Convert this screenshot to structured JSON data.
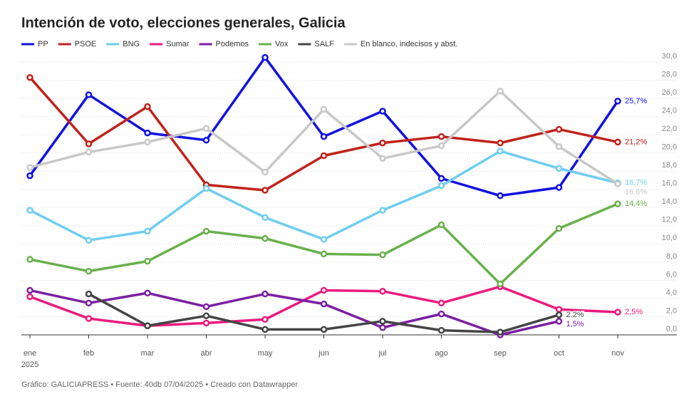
{
  "chart_data": {
    "type": "line",
    "title": "Intención de voto, elecciones generales, Galicia",
    "categories": [
      "ene",
      "feb",
      "mar",
      "abr",
      "may",
      "jun",
      "jul",
      "ago",
      "sep",
      "oct",
      "nov"
    ],
    "year_label": "2025",
    "ylim": [
      0,
      30
    ],
    "yticks": [
      {
        "value": 0,
        "label": "0,0"
      },
      {
        "value": 2,
        "label": "2,0"
      },
      {
        "value": 4,
        "label": "4,0"
      },
      {
        "value": 6,
        "label": "6,0"
      },
      {
        "value": 8,
        "label": "8,0"
      },
      {
        "value": 10,
        "label": "10,0"
      },
      {
        "value": 12,
        "label": "12,0"
      },
      {
        "value": 14,
        "label": "14,0"
      },
      {
        "value": 16,
        "label": "16,0"
      },
      {
        "value": 18,
        "label": "18,0"
      },
      {
        "value": 20,
        "label": "20,0"
      },
      {
        "value": 22,
        "label": "22,0"
      },
      {
        "value": 24,
        "label": "24,0"
      },
      {
        "value": 26,
        "label": "26,0"
      },
      {
        "value": 28,
        "label": "28,0"
      },
      {
        "value": 30,
        "label": "30,0"
      }
    ],
    "grid": true,
    "series": [
      {
        "name": "PP",
        "color": "#1212e0",
        "values": [
          17.5,
          26.4,
          22.2,
          21.4,
          30.5,
          21.8,
          24.6,
          17.2,
          15.3,
          16.2,
          25.7
        ],
        "value_labels": [
          null,
          null,
          null,
          null,
          null,
          null,
          null,
          null,
          null,
          null,
          "25,7%"
        ]
      },
      {
        "name": "PSOE",
        "color": "#c0221b",
        "values": [
          28.3,
          21.0,
          25.1,
          16.5,
          15.9,
          19.7,
          21.1,
          21.8,
          21.1,
          22.6,
          21.2
        ],
        "value_labels": [
          null,
          null,
          null,
          null,
          null,
          null,
          null,
          null,
          null,
          null,
          "21,2%"
        ]
      },
      {
        "name": "BNG",
        "color": "#6fcdef",
        "values": [
          13.7,
          10.4,
          11.4,
          16.1,
          12.9,
          10.5,
          13.7,
          16.4,
          20.2,
          18.3,
          16.7
        ],
        "value_labels": [
          null,
          null,
          null,
          null,
          null,
          null,
          null,
          null,
          null,
          null,
          "16,7%"
        ]
      },
      {
        "name": "Sumar",
        "color": "#ec1a7e",
        "values": [
          4.2,
          1.8,
          1.0,
          1.3,
          1.7,
          4.9,
          4.8,
          3.5,
          5.3,
          2.8,
          2.5
        ],
        "value_labels": [
          null,
          null,
          null,
          null,
          null,
          null,
          null,
          null,
          null,
          null,
          "2,5%"
        ]
      },
      {
        "name": "Podemos",
        "color": "#7b1fa2",
        "values": [
          4.9,
          3.5,
          4.6,
          3.1,
          4.5,
          3.4,
          0.8,
          2.3,
          0.0,
          1.5,
          null
        ],
        "value_labels": [
          null,
          null,
          null,
          null,
          null,
          null,
          null,
          null,
          null,
          "1,5%",
          null
        ]
      },
      {
        "name": "Vox",
        "color": "#6ab04c",
        "values": [
          8.3,
          7.0,
          8.1,
          11.4,
          10.6,
          8.9,
          8.8,
          12.1,
          5.6,
          11.7,
          14.4
        ],
        "value_labels": [
          null,
          null,
          null,
          null,
          null,
          null,
          null,
          null,
          null,
          null,
          "14,4%"
        ]
      },
      {
        "name": "SALF",
        "color": "#444444",
        "values": [
          null,
          4.5,
          1.0,
          2.1,
          0.6,
          0.6,
          1.5,
          0.5,
          0.3,
          2.2,
          null
        ],
        "value_labels": [
          null,
          null,
          null,
          null,
          null,
          null,
          null,
          null,
          null,
          "2,2%",
          null
        ]
      },
      {
        "name": "En blanco, indecisos y abst.",
        "color": "#c8c8c8",
        "values": [
          18.4,
          20.1,
          21.2,
          22.7,
          17.9,
          24.8,
          19.4,
          20.8,
          26.8,
          20.7,
          16.6
        ],
        "value_labels": [
          null,
          null,
          null,
          null,
          null,
          null,
          null,
          null,
          null,
          null,
          "16,6%"
        ]
      }
    ],
    "footer": "Gráfico: GALICIAPRESS • Fuente: 40db 07/04/2025 • Creado con Datawrapper"
  }
}
